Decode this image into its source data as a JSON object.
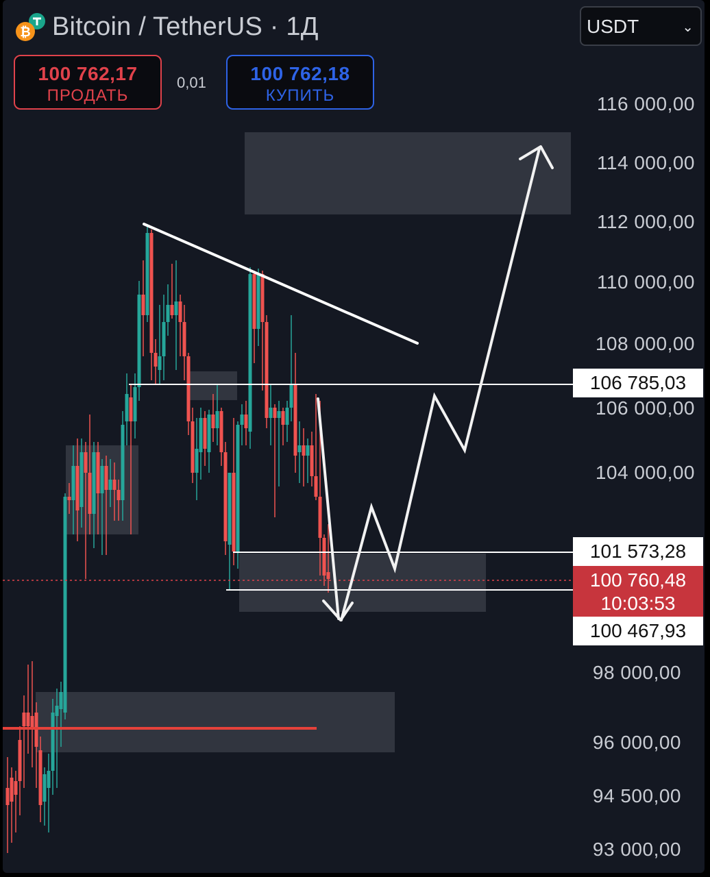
{
  "header": {
    "title": "Bitcoin / TetherUS · 1Д",
    "currency_select": "USDT",
    "coin_icon": "bitcoin-tether-icon"
  },
  "trade": {
    "sell_price": "100 762,17",
    "sell_label": "ПРОДАТЬ",
    "spread": "0,01",
    "buy_price": "100 762,18",
    "buy_label": "КУПИТЬ"
  },
  "price_axis": {
    "ticks": [
      "116 000,00",
      "114 000,00",
      "112 000,00",
      "110 000,00",
      "108 000,00",
      "106 000,00",
      "104 000,00",
      "98 000,00",
      "96 000,00",
      "94 500,00",
      "93 000,00"
    ],
    "level_1": "106 785,03",
    "level_2": "101 573,28",
    "current_price": "100 760,48",
    "countdown": "10:03:53",
    "level_3": "100 467,93"
  },
  "colors": {
    "up": "#26a69a",
    "down": "#ef5350",
    "sell": "#e0424b",
    "buy": "#2e63e6",
    "background": "#141822"
  }
}
